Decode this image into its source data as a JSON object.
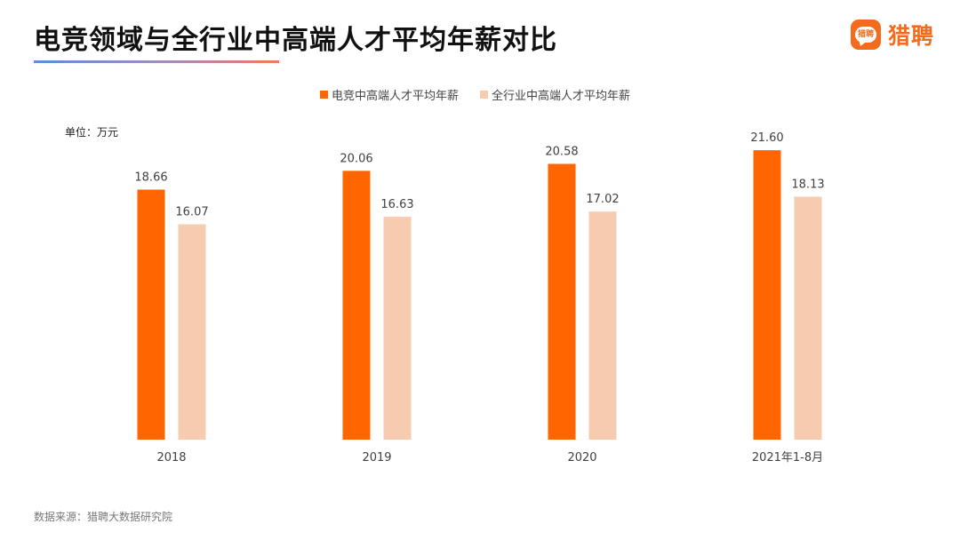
{
  "header": {
    "title": "电竞领域与全行业中高端人才平均年薪对比",
    "logo_mini": "猎聘",
    "logo_text": "猎聘"
  },
  "unit_label": "单位：万元",
  "source_note": "数据来源：猎聘大数据研究院",
  "colors": {
    "series_esports": "#ff6600",
    "series_all": "#f7cbb0",
    "logo": "#f36b1c"
  },
  "chart_data": {
    "type": "bar",
    "title": "电竞领域与全行业中高端人才平均年薪对比",
    "categories": [
      "2018",
      "2019",
      "2020",
      "2021年1-8月"
    ],
    "series": [
      {
        "name": "电竞中高端人才平均年薪",
        "values": [
          18.66,
          20.06,
          20.58,
          21.6
        ],
        "labels": [
          "18.66",
          "20.06",
          "20.58",
          "21.60"
        ]
      },
      {
        "name": "全行业中高端人才平均年薪",
        "values": [
          16.07,
          16.63,
          17.02,
          18.13
        ],
        "labels": [
          "16.07",
          "16.63",
          "17.02",
          "18.13"
        ]
      }
    ],
    "ylim": [
      0,
      23
    ],
    "ylabel": "",
    "xlabel": "",
    "grid": false,
    "legend_position": "top-center"
  }
}
